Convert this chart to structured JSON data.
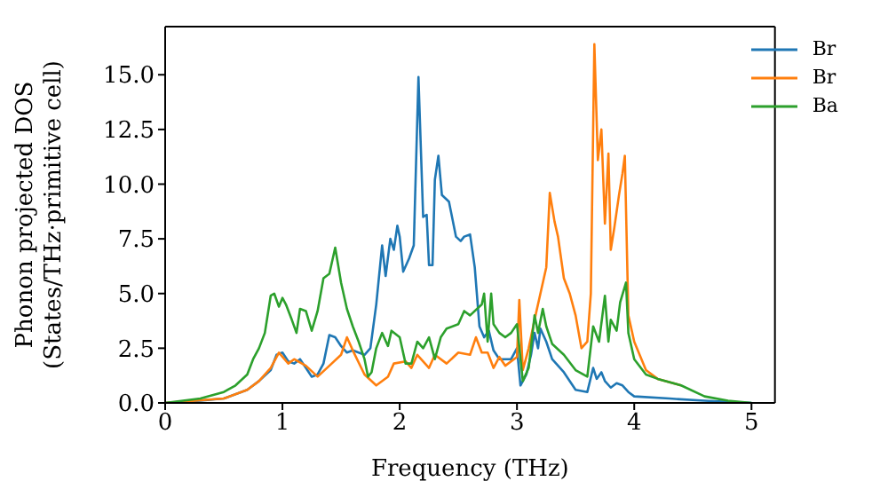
{
  "chart_data": {
    "type": "line",
    "xlabel": "Frequency (THz)",
    "ylabel": "Phonon projected DOS\n(States/THz·primitive cell)",
    "xlim": [
      0,
      5.2
    ],
    "xticks": [
      0,
      1,
      2,
      3,
      4,
      5
    ],
    "ylim": [
      0,
      17.2
    ],
    "yticks": [
      {
        "value": 0,
        "label": "0.0"
      },
      {
        "value": 2.5,
        "label": "2.5"
      },
      {
        "value": 5,
        "label": "5.0"
      },
      {
        "value": 7.5,
        "label": "7.5"
      },
      {
        "value": 10,
        "label": "10.0"
      },
      {
        "value": 12.5,
        "label": "12.5"
      },
      {
        "value": 15,
        "label": "15.0"
      }
    ],
    "grid": false,
    "legend": "top right",
    "marker": "none",
    "line_style": "solid",
    "series": [
      {
        "name": "Br",
        "color": "#1f77b4",
        "x": [
          0,
          0.3,
          0.5,
          0.7,
          0.8,
          0.9,
          0.95,
          1.0,
          1.05,
          1.1,
          1.15,
          1.2,
          1.25,
          1.3,
          1.35,
          1.4,
          1.45,
          1.5,
          1.55,
          1.6,
          1.7,
          1.75,
          1.8,
          1.85,
          1.88,
          1.92,
          1.95,
          1.98,
          2.0,
          2.03,
          2.08,
          2.12,
          2.16,
          2.2,
          2.23,
          2.25,
          2.28,
          2.3,
          2.33,
          2.36,
          2.42,
          2.48,
          2.52,
          2.55,
          2.6,
          2.64,
          2.68,
          2.72,
          2.76,
          2.8,
          2.85,
          2.95,
          3.0,
          3.03,
          3.08,
          3.12,
          3.15,
          3.18,
          3.2,
          3.25,
          3.3,
          3.4,
          3.5,
          3.6,
          3.65,
          3.68,
          3.72,
          3.75,
          3.8,
          3.85,
          3.9,
          3.95,
          4.0,
          4.3,
          4.6,
          5.0
        ],
        "values": [
          0,
          0.1,
          0.2,
          0.6,
          1.0,
          1.5,
          2.2,
          2.3,
          1.9,
          1.8,
          2.0,
          1.6,
          1.2,
          1.3,
          1.8,
          3.1,
          3.0,
          2.6,
          2.3,
          2.4,
          2.2,
          2.5,
          4.5,
          7.2,
          5.8,
          7.5,
          7.0,
          8.1,
          7.6,
          6.0,
          6.6,
          7.2,
          14.9,
          8.5,
          8.6,
          6.3,
          6.3,
          10.2,
          11.3,
          9.5,
          9.2,
          7.6,
          7.4,
          7.6,
          7.7,
          6.2,
          3.5,
          3.0,
          3.3,
          2.4,
          2.0,
          2.0,
          2.5,
          0.8,
          1.3,
          2.2,
          3.2,
          2.5,
          3.4,
          2.8,
          2.0,
          1.4,
          0.6,
          0.5,
          1.6,
          1.1,
          1.4,
          1.0,
          0.7,
          0.9,
          0.8,
          0.5,
          0.3,
          0.2,
          0.1,
          0
        ]
      },
      {
        "name": "Br",
        "color": "#ff7f0e",
        "x": [
          0,
          0.5,
          0.7,
          0.8,
          0.9,
          0.97,
          1.05,
          1.1,
          1.2,
          1.3,
          1.4,
          1.5,
          1.55,
          1.6,
          1.7,
          1.8,
          1.9,
          1.95,
          2.05,
          2.1,
          2.15,
          2.25,
          2.3,
          2.4,
          2.5,
          2.6,
          2.65,
          2.7,
          2.75,
          2.8,
          2.85,
          2.9,
          3.0,
          3.02,
          3.05,
          3.1,
          3.15,
          3.2,
          3.25,
          3.28,
          3.32,
          3.35,
          3.4,
          3.45,
          3.5,
          3.55,
          3.6,
          3.63,
          3.66,
          3.69,
          3.72,
          3.75,
          3.78,
          3.8,
          3.83,
          3.87,
          3.9,
          3.92,
          3.95,
          4.0,
          4.1,
          4.2,
          4.4
        ],
        "values": [
          0,
          0.2,
          0.6,
          1.0,
          1.6,
          2.3,
          1.8,
          2.0,
          1.7,
          1.2,
          1.7,
          2.2,
          3.0,
          2.4,
          1.3,
          0.8,
          1.2,
          1.8,
          1.9,
          1.6,
          2.2,
          1.6,
          2.2,
          1.8,
          2.3,
          2.2,
          3.0,
          2.3,
          2.3,
          1.6,
          2.1,
          1.7,
          2.1,
          4.7,
          1.5,
          2.5,
          3.8,
          5.0,
          6.2,
          9.6,
          8.3,
          7.6,
          5.7,
          5.0,
          4.0,
          2.5,
          2.8,
          5.0,
          16.4,
          11.1,
          12.5,
          8.2,
          11.4,
          7.0,
          8.0,
          9.5,
          10.5,
          11.3,
          4.0,
          2.8,
          1.5,
          1.1,
          0.8
        ]
      },
      {
        "name": "Ba",
        "color": "#2ca02c",
        "x": [
          0,
          0.3,
          0.5,
          0.6,
          0.7,
          0.75,
          0.8,
          0.85,
          0.9,
          0.93,
          0.97,
          1.0,
          1.03,
          1.08,
          1.12,
          1.15,
          1.2,
          1.25,
          1.3,
          1.35,
          1.4,
          1.45,
          1.5,
          1.55,
          1.6,
          1.65,
          1.7,
          1.73,
          1.76,
          1.8,
          1.85,
          1.9,
          1.93,
          2.0,
          2.05,
          2.1,
          2.15,
          2.2,
          2.25,
          2.3,
          2.35,
          2.4,
          2.5,
          2.55,
          2.6,
          2.7,
          2.72,
          2.75,
          2.78,
          2.8,
          2.85,
          2.9,
          2.95,
          3.0,
          3.05,
          3.1,
          3.15,
          3.18,
          3.22,
          3.25,
          3.3,
          3.4,
          3.5,
          3.6,
          3.65,
          3.7,
          3.75,
          3.78,
          3.8,
          3.85,
          3.88,
          3.93,
          3.95,
          4.0,
          4.1,
          4.2,
          4.4,
          4.6,
          4.8,
          5.0
        ],
        "values": [
          0,
          0.2,
          0.5,
          0.8,
          1.3,
          2.0,
          2.5,
          3.2,
          4.9,
          5.0,
          4.4,
          4.8,
          4.5,
          3.8,
          3.2,
          4.3,
          4.2,
          3.3,
          4.2,
          5.7,
          5.9,
          7.1,
          5.5,
          4.3,
          3.5,
          2.8,
          2.0,
          1.2,
          1.4,
          2.5,
          3.2,
          2.6,
          3.3,
          3.0,
          1.8,
          1.8,
          2.8,
          2.5,
          3.0,
          2.0,
          3.0,
          3.4,
          3.6,
          4.2,
          4.0,
          4.5,
          5.0,
          2.8,
          5.0,
          3.6,
          3.2,
          3.0,
          3.2,
          3.6,
          1.0,
          1.6,
          4.0,
          3.2,
          4.3,
          3.5,
          2.7,
          2.2,
          1.5,
          1.2,
          3.5,
          2.8,
          4.9,
          2.8,
          3.8,
          3.3,
          4.6,
          5.5,
          3.2,
          2.0,
          1.3,
          1.1,
          0.8,
          0.3,
          0.1,
          0
        ]
      }
    ]
  }
}
